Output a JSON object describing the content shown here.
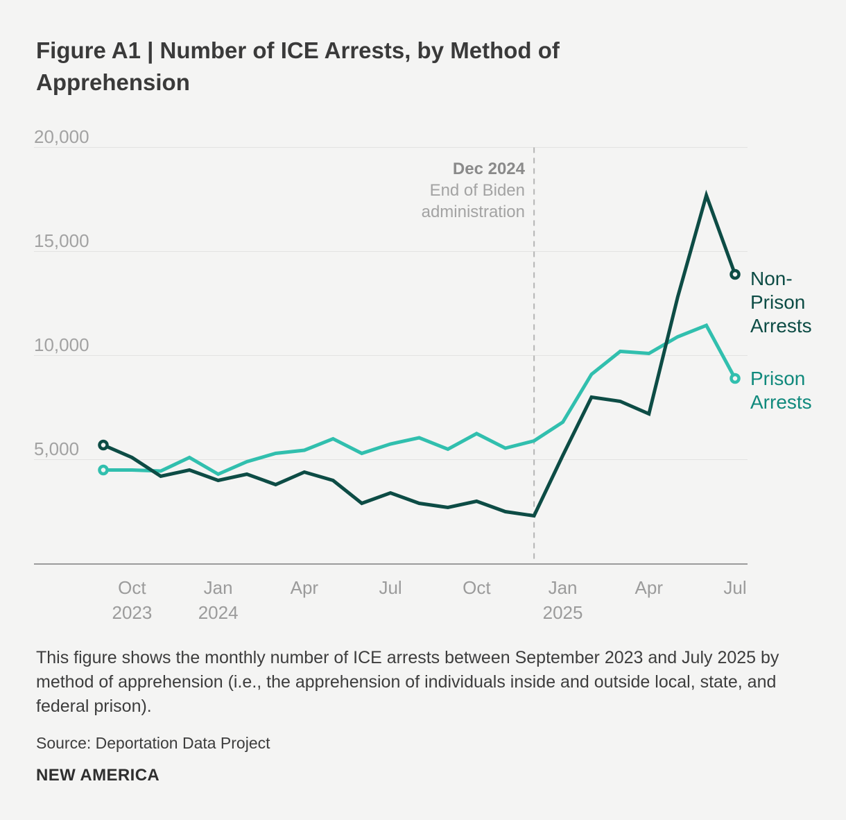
{
  "page": {
    "title": "Figure A1 | Number of ICE Arrests, by Method of Apprehension",
    "caption": "This figure shows the monthly number of ICE arrests between September 2023 and July 2025 by method of apprehension (i.e., the apprehension of individuals inside and outside local, state, and federal prison).",
    "source": "Source: Deportation Data Project",
    "brand": "NEW AMERICA",
    "background_color": "#f4f4f3"
  },
  "chart_data": {
    "type": "line",
    "x": [
      "Sep 2023",
      "Oct 2023",
      "Nov 2023",
      "Dec 2023",
      "Jan 2024",
      "Feb 2024",
      "Mar 2024",
      "Apr 2024",
      "May 2024",
      "Jun 2024",
      "Jul 2024",
      "Aug 2024",
      "Sep 2024",
      "Oct 2024",
      "Nov 2024",
      "Dec 2024",
      "Jan 2025",
      "Feb 2025",
      "Mar 2025",
      "Apr 2025",
      "May 2025",
      "Jun 2025",
      "Jul 2025"
    ],
    "series": [
      {
        "name": "Non-Prison Arrests",
        "color": "#0d4c45",
        "label_color": "#0d4c45",
        "values": [
          5700,
          5100,
          4200,
          4500,
          4000,
          4300,
          3800,
          4400,
          4000,
          2900,
          3400,
          2900,
          2700,
          3000,
          2500,
          2300,
          5200,
          8000,
          7800,
          7200,
          12800,
          17700,
          13900
        ]
      },
      {
        "name": "Prison Arrests",
        "color": "#31bfae",
        "label_color": "#10897c",
        "values": [
          4500,
          4500,
          4450,
          5100,
          4300,
          4900,
          5300,
          5450,
          6000,
          5300,
          5750,
          6050,
          5500,
          6250,
          5550,
          5900,
          6800,
          9100,
          10200,
          10100,
          10900,
          11450,
          8900
        ]
      }
    ],
    "ylim": [
      0,
      20000
    ],
    "y_gridlines": [
      20000,
      15000,
      10000,
      5000
    ],
    "y_tick_labels": [
      "20,000",
      "15,000",
      "10,000",
      "5,000"
    ],
    "x_ticks": [
      {
        "index": 1,
        "line1": "Oct",
        "line2": "2023"
      },
      {
        "index": 4,
        "line1": "Jan",
        "line2": "2024"
      },
      {
        "index": 7,
        "line1": "Apr",
        "line2": ""
      },
      {
        "index": 10,
        "line1": "Jul",
        "line2": ""
      },
      {
        "index": 13,
        "line1": "Oct",
        "line2": ""
      },
      {
        "index": 16,
        "line1": "Jan",
        "line2": "2025"
      },
      {
        "index": 19,
        "line1": "Apr",
        "line2": ""
      },
      {
        "index": 22,
        "line1": "Jul",
        "line2": ""
      }
    ],
    "annotation": {
      "index": 15,
      "title": "Dec 2024",
      "line2": "End of Biden",
      "line3": "administration"
    },
    "legend": [
      {
        "lines": [
          "Non-",
          "Prison",
          "Arrests"
        ]
      },
      {
        "lines": [
          "Prison",
          "Arrests"
        ]
      }
    ],
    "grid_color": "#e2e2e1",
    "axis_color": "#9b9b9b",
    "dashed_line_color": "#b5b5b4",
    "legend_position": "right",
    "grid": true
  }
}
